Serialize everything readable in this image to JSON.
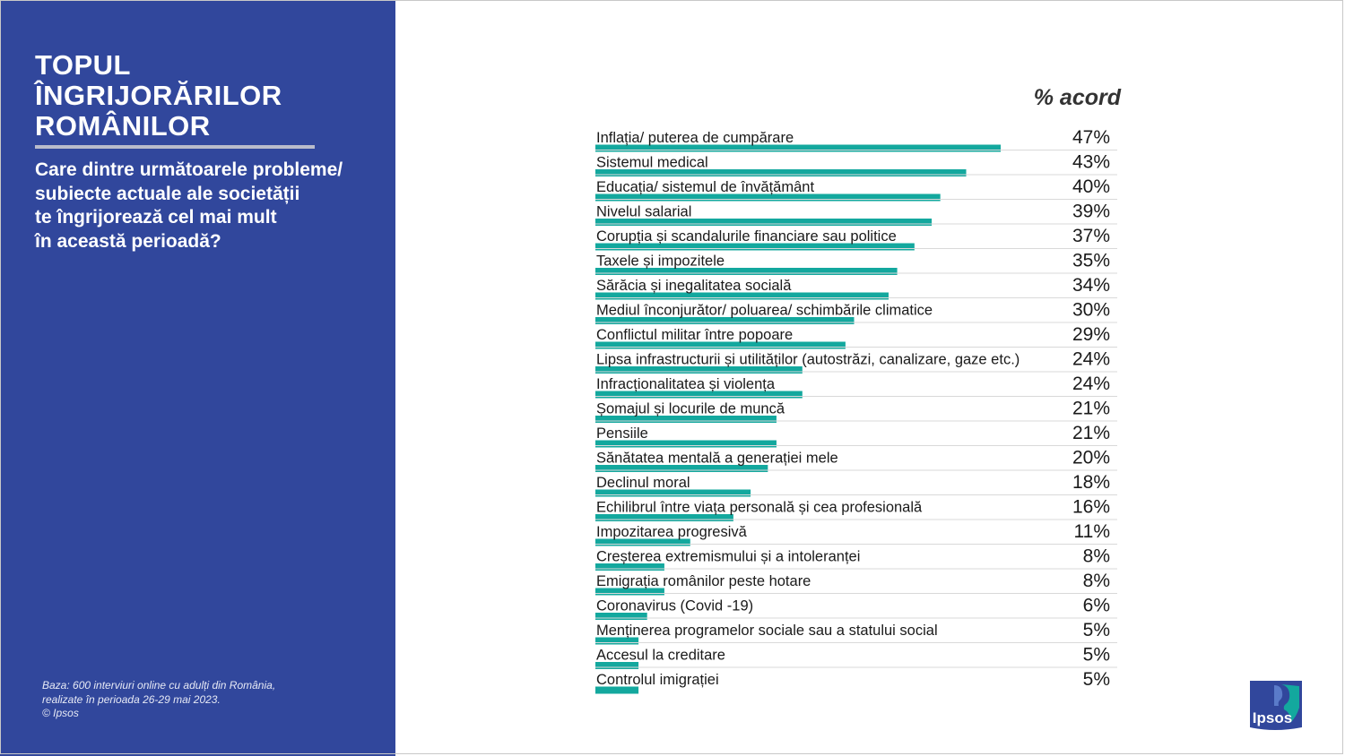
{
  "panel": {
    "title_lines": [
      "TOPUL",
      "ÎNGRIJORĂRILOR",
      "ROMÂNILOR"
    ],
    "question_lines": [
      "Care dintre următoarele probleme/",
      "subiecte actuale ale societății",
      "te îngrijorează cel mai mult",
      "în această perioadă?"
    ],
    "footnote_lines": [
      "Baza: 600 interviuri online cu adulți din România,",
      "realizate în perioada 26-29 mai 2023.",
      "© Ipsos"
    ],
    "background_color": "#31479c"
  },
  "logo": {
    "text": "Ipsos",
    "icon": "ipsos-logo-icon",
    "color": "#31479c",
    "accent": "#13a89e"
  },
  "chart_data": {
    "type": "bar",
    "orientation": "horizontal",
    "value_header": "% acord",
    "bar_color": "#13a89e",
    "xlim": [
      0,
      47
    ],
    "categories": [
      "Inflația/ puterea de cumpărare",
      "Sistemul medical",
      "Educația/ sistemul de învățământ",
      "Nivelul salarial",
      "Corupția și scandalurile financiare sau politice",
      "Taxele și impozitele",
      "Sărăcia și inegalitatea socială",
      "Mediul înconjurător/ poluarea/ schimbările climatice",
      "Conflictul militar între popoare",
      "Lipsa infrastructurii și utilităților (autostrăzi, canalizare, gaze etc.)",
      "Infracționalitatea și violența",
      "Șomajul și locurile de muncă",
      "Pensiile",
      "Sănătatea mentală a generației mele",
      "Declinul moral",
      "Echilibrul între viața personală și cea profesională",
      "Impozitarea progresivă",
      "Creșterea extremismului și a intoleranței",
      "Emigrația românilor peste hotare",
      "Coronavirus (Covid -19)",
      "Menținerea programelor sociale sau a statului social",
      "Accesul la creditare",
      "Controlul imigrației"
    ],
    "values": [
      47,
      43,
      40,
      39,
      37,
      35,
      34,
      30,
      29,
      24,
      24,
      21,
      21,
      20,
      18,
      16,
      11,
      8,
      8,
      6,
      5,
      5,
      5
    ],
    "value_labels": [
      "47%",
      "43%",
      "40%",
      "39%",
      "37%",
      "35%",
      "34%",
      "30%",
      "29%",
      "24%",
      "24%",
      "21%",
      "21%",
      "20%",
      "18%",
      "16%",
      "11%",
      "8%",
      "8%",
      "6%",
      "5%",
      "5%",
      "5%"
    ]
  }
}
